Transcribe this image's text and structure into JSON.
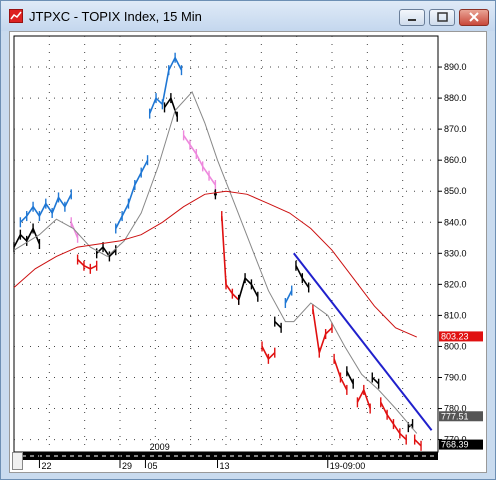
{
  "window": {
    "title": "JTPXC - TOPIX Index, 15 Min",
    "buttons": {
      "minimize": "minimize",
      "maximize": "maximize",
      "close": "close"
    }
  },
  "chart_data": {
    "type": "line",
    "title": "JTPXC - TOPIX Index, 15 Min",
    "ylim": [
      766,
      900
    ],
    "y_ticks": [
      {
        "v": 890,
        "label": "890.0"
      },
      {
        "v": 880,
        "label": "880.0"
      },
      {
        "v": 870,
        "label": "870.0"
      },
      {
        "v": 860,
        "label": "860.0"
      },
      {
        "v": 850,
        "label": "850.0"
      },
      {
        "v": 840,
        "label": "840.0"
      },
      {
        "v": 830,
        "label": "830.0"
      },
      {
        "v": 820,
        "label": "820.0"
      },
      {
        "v": 810,
        "label": "810.0"
      },
      {
        "v": 800,
        "label": "800.0"
      },
      {
        "v": 790,
        "label": "790.0"
      },
      {
        "v": 780,
        "label": "780.0"
      },
      {
        "v": 770,
        "label": "770.0"
      }
    ],
    "price_labels": [
      {
        "v": 803.23,
        "label": "803.23",
        "color": "#e01010"
      },
      {
        "v": 777.51,
        "label": "777.51",
        "color": "#555555"
      },
      {
        "v": 768.39,
        "label": "768.39",
        "color": "#000000"
      }
    ],
    "x_labels": [
      "22",
      "29",
      "05",
      "13",
      "19-09:00"
    ],
    "x_label_pos": [
      0.06,
      0.25,
      0.31,
      0.48,
      0.74
    ],
    "year_label": "2009",
    "year_label_pos": 0.32,
    "grid": true,
    "series": [
      {
        "style": "price",
        "segments": [
          {
            "color": "#000000",
            "points": [
              [
                0.0,
                832
              ],
              [
                0.015,
                836
              ],
              [
                0.03,
                834
              ],
              [
                0.045,
                838
              ],
              [
                0.06,
                833
              ]
            ]
          },
          {
            "color": "#1f77d4",
            "points": [
              [
                0.015,
                840
              ],
              [
                0.03,
                842
              ],
              [
                0.045,
                845
              ],
              [
                0.06,
                842
              ],
              [
                0.075,
                846
              ],
              [
                0.09,
                843
              ],
              [
                0.105,
                848
              ],
              [
                0.12,
                845
              ],
              [
                0.135,
                849
              ]
            ]
          },
          {
            "color": "#ee88dd",
            "points": [
              [
                0.135,
                840
              ],
              [
                0.15,
                835
              ]
            ]
          },
          {
            "color": "#e01010",
            "points": [
              [
                0.15,
                828
              ],
              [
                0.165,
                826
              ],
              [
                0.18,
                825
              ],
              [
                0.195,
                826
              ]
            ]
          },
          {
            "color": "#000000",
            "points": [
              [
                0.195,
                830
              ],
              [
                0.21,
                832
              ],
              [
                0.225,
                829
              ],
              [
                0.24,
                831
              ]
            ]
          },
          {
            "color": "#1f77d4",
            "points": [
              [
                0.24,
                838
              ],
              [
                0.255,
                842
              ],
              [
                0.27,
                846
              ],
              [
                0.285,
                852
              ],
              [
                0.3,
                856
              ],
              [
                0.315,
                860
              ]
            ]
          },
          {
            "color": "#1f77d4",
            "points": [
              [
                0.32,
                875
              ],
              [
                0.335,
                880
              ],
              [
                0.35,
                878
              ],
              [
                0.365,
                889
              ],
              [
                0.38,
                893
              ],
              [
                0.395,
                889
              ]
            ]
          },
          {
            "color": "#000000",
            "points": [
              [
                0.355,
                877
              ],
              [
                0.37,
                880
              ],
              [
                0.385,
                874
              ]
            ]
          },
          {
            "color": "#ee88dd",
            "points": [
              [
                0.4,
                868
              ],
              [
                0.415,
                865
              ],
              [
                0.43,
                862
              ],
              [
                0.445,
                858
              ],
              [
                0.46,
                855
              ],
              [
                0.475,
                852
              ]
            ]
          },
          {
            "color": "#000000",
            "points": [
              [
                0.475,
                849
              ]
            ]
          },
          {
            "color": "#e01010",
            "points": [
              [
                0.49,
                842
              ],
              [
                0.5,
                820
              ],
              [
                0.515,
                817
              ],
              [
                0.53,
                815
              ]
            ]
          },
          {
            "color": "#000000",
            "points": [
              [
                0.53,
                815
              ],
              [
                0.545,
                822
              ],
              [
                0.56,
                820
              ],
              [
                0.575,
                816
              ]
            ]
          },
          {
            "color": "#e01010",
            "points": [
              [
                0.585,
                800
              ],
              [
                0.6,
                796
              ],
              [
                0.615,
                798
              ]
            ]
          },
          {
            "color": "#000000",
            "points": [
              [
                0.615,
                808
              ],
              [
                0.63,
                806
              ]
            ]
          },
          {
            "color": "#1f77d4",
            "points": [
              [
                0.64,
                814
              ],
              [
                0.655,
                818
              ]
            ]
          },
          {
            "color": "#000000",
            "points": [
              [
                0.665,
                826
              ],
              [
                0.68,
                822
              ],
              [
                0.695,
                819
              ]
            ]
          },
          {
            "color": "#e01010",
            "points": [
              [
                0.705,
                812
              ],
              [
                0.72,
                798
              ],
              [
                0.735,
                804
              ],
              [
                0.75,
                806
              ]
            ]
          },
          {
            "color": "#e01010",
            "points": [
              [
                0.755,
                796
              ],
              [
                0.77,
                790
              ],
              [
                0.785,
                786
              ]
            ]
          },
          {
            "color": "#000000",
            "points": [
              [
                0.785,
                792
              ],
              [
                0.8,
                788
              ]
            ]
          },
          {
            "color": "#e01010",
            "points": [
              [
                0.81,
                782
              ],
              [
                0.825,
                786
              ],
              [
                0.84,
                780
              ]
            ]
          },
          {
            "color": "#000000",
            "points": [
              [
                0.845,
                790
              ],
              [
                0.86,
                788
              ]
            ]
          },
          {
            "color": "#e01010",
            "points": [
              [
                0.865,
                782
              ],
              [
                0.88,
                778
              ],
              [
                0.895,
                775
              ],
              [
                0.91,
                772
              ],
              [
                0.925,
                770
              ]
            ]
          },
          {
            "color": "#000000",
            "points": [
              [
                0.93,
                774
              ],
              [
                0.94,
                775
              ]
            ]
          },
          {
            "color": "#e01010",
            "points": [
              [
                0.945,
                770
              ],
              [
                0.96,
                768
              ]
            ]
          }
        ]
      },
      {
        "style": "line",
        "color": "#888888",
        "width": 1,
        "points": [
          [
            0.0,
            831
          ],
          [
            0.06,
            836
          ],
          [
            0.1,
            841
          ],
          [
            0.14,
            838
          ],
          [
            0.18,
            832
          ],
          [
            0.22,
            829
          ],
          [
            0.26,
            834
          ],
          [
            0.3,
            843
          ],
          [
            0.34,
            858
          ],
          [
            0.38,
            876
          ],
          [
            0.42,
            882
          ],
          [
            0.45,
            872
          ],
          [
            0.48,
            860
          ],
          [
            0.52,
            846
          ],
          [
            0.56,
            832
          ],
          [
            0.6,
            818
          ],
          [
            0.64,
            808
          ],
          [
            0.66,
            808
          ],
          [
            0.7,
            814
          ],
          [
            0.74,
            810
          ],
          [
            0.78,
            800
          ],
          [
            0.82,
            791
          ],
          [
            0.86,
            786
          ],
          [
            0.9,
            780
          ],
          [
            0.95,
            772
          ]
        ]
      },
      {
        "style": "line",
        "color": "#cc1010",
        "width": 1,
        "points": [
          [
            0.0,
            819
          ],
          [
            0.05,
            825
          ],
          [
            0.1,
            829
          ],
          [
            0.15,
            832
          ],
          [
            0.2,
            833
          ],
          [
            0.25,
            834
          ],
          [
            0.3,
            836
          ],
          [
            0.35,
            840
          ],
          [
            0.4,
            845
          ],
          [
            0.45,
            849
          ],
          [
            0.5,
            850
          ],
          [
            0.55,
            849
          ],
          [
            0.6,
            846
          ],
          [
            0.65,
            843
          ],
          [
            0.7,
            838
          ],
          [
            0.75,
            831
          ],
          [
            0.8,
            822
          ],
          [
            0.85,
            813
          ],
          [
            0.9,
            806
          ],
          [
            0.95,
            803
          ]
        ]
      },
      {
        "style": "line",
        "color": "#2020cc",
        "width": 2,
        "points": [
          [
            0.66,
            830
          ],
          [
            0.985,
            773
          ]
        ]
      }
    ]
  }
}
